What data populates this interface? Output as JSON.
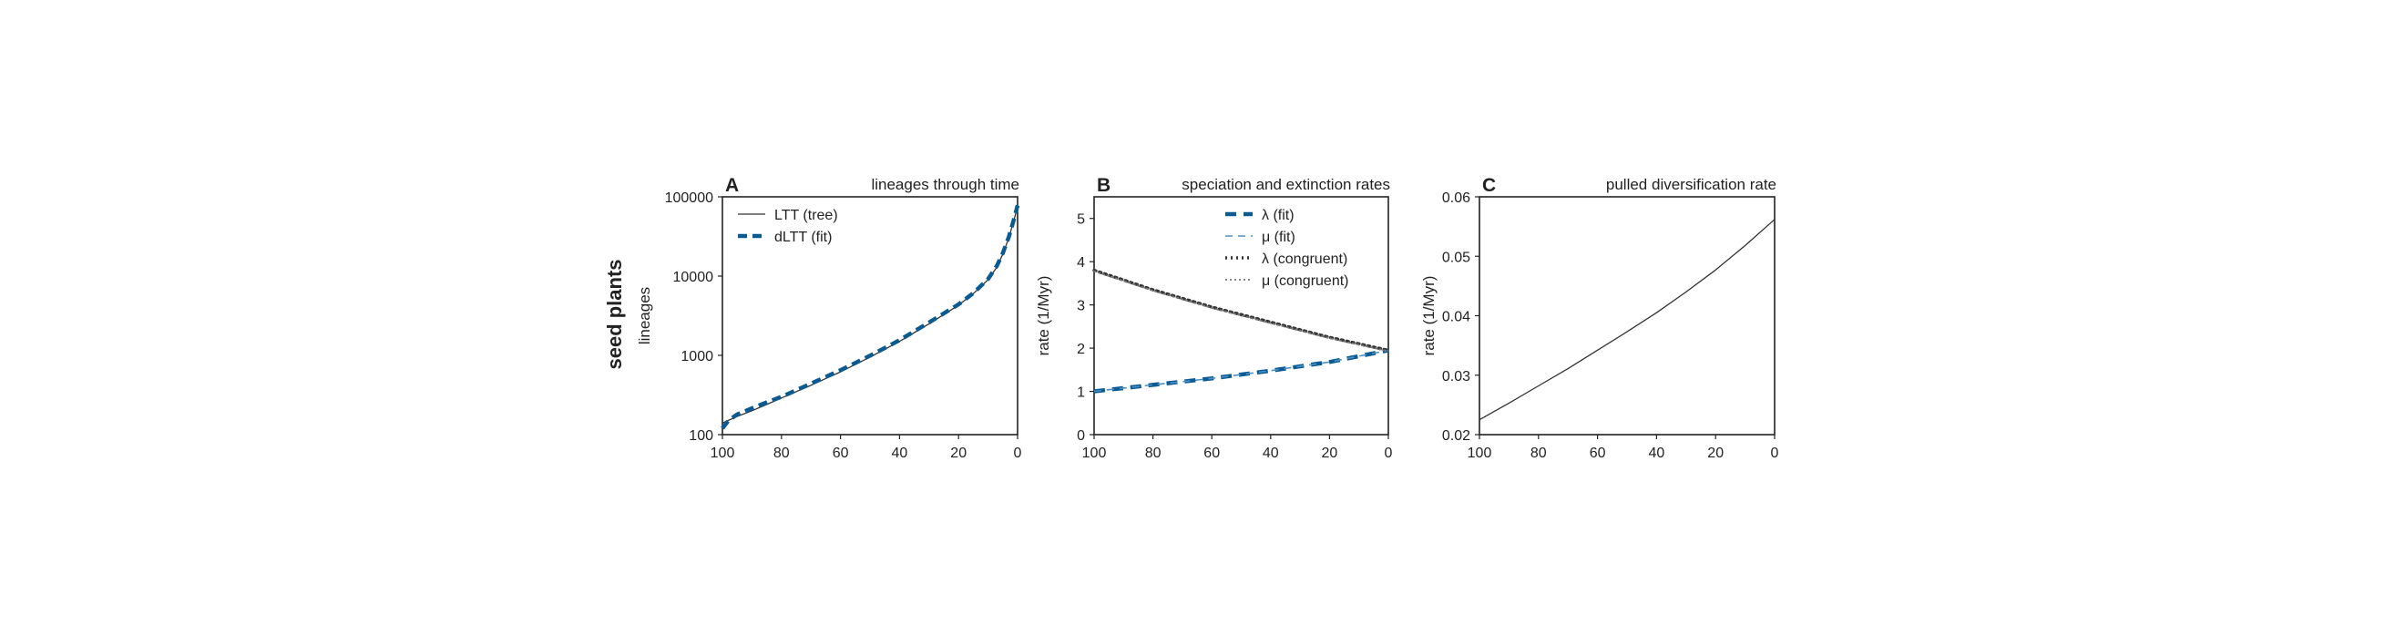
{
  "figure": {
    "row_label": "seed plants",
    "colors": {
      "black": "#333333",
      "blue": "#0b5a91",
      "lightblue": "#4a90c8",
      "axis": "#222222"
    }
  },
  "chart_data": [
    {
      "id": "A",
      "panel_letter": "A",
      "type": "line",
      "title": "lineages through time",
      "xlabel": "",
      "ylabel": "lineages",
      "xlim": [
        100,
        0
      ],
      "ylim": [
        100,
        100000
      ],
      "yscale": "log",
      "xticks": [
        100,
        80,
        60,
        40,
        20,
        0
      ],
      "yticks": [
        100,
        1000,
        10000,
        100000
      ],
      "ytick_labels": [
        "100",
        "1000",
        "10000",
        "100000"
      ],
      "legend": "top-left",
      "series": [
        {
          "name": "LTT (tree)",
          "style": "solid",
          "color": "#333333",
          "x": [
            100,
            95,
            90,
            85,
            80,
            70,
            60,
            50,
            40,
            30,
            20,
            15,
            10,
            7,
            5,
            3,
            1,
            0
          ],
          "y": [
            140,
            170,
            200,
            240,
            290,
            420,
            620,
            950,
            1500,
            2500,
            4300,
            6000,
            9000,
            13000,
            19000,
            30000,
            55000,
            75000
          ]
        },
        {
          "name": "dLTT (fit)",
          "style": "dashed",
          "color": "#0b5a91",
          "x": [
            100,
            98,
            95,
            90,
            85,
            80,
            70,
            60,
            50,
            40,
            30,
            20,
            15,
            10,
            7,
            5,
            3,
            1,
            0
          ],
          "y": [
            120,
            150,
            180,
            215,
            255,
            300,
            440,
            650,
            990,
            1550,
            2600,
            4400,
            6100,
            9200,
            13500,
            19500,
            31000,
            56000,
            78000
          ]
        }
      ]
    },
    {
      "id": "B",
      "panel_letter": "B",
      "type": "line",
      "title": "speciation and extinction rates",
      "xlabel": "",
      "ylabel": "rate (1/Myr)",
      "xlim": [
        100,
        0
      ],
      "ylim": [
        0,
        5.5
      ],
      "xticks": [
        100,
        80,
        60,
        40,
        20,
        0
      ],
      "yticks": [
        0,
        1,
        2,
        3,
        4,
        5
      ],
      "legend": "top-center",
      "series": [
        {
          "name": "λ (fit)",
          "style": "dashed-thick",
          "color": "#0b5a91",
          "x": [
            100,
            80,
            60,
            40,
            20,
            0
          ],
          "y": [
            1.0,
            1.15,
            1.3,
            1.48,
            1.68,
            1.95
          ]
        },
        {
          "name": "μ (fit)",
          "style": "dashed-thin",
          "color": "#4a90c8",
          "x": [
            100,
            80,
            60,
            40,
            20,
            0
          ],
          "y": [
            1.0,
            1.15,
            1.3,
            1.48,
            1.68,
            1.95
          ]
        },
        {
          "name": "λ (congruent)",
          "style": "dotted-thick",
          "color": "#333333",
          "x": [
            100,
            80,
            60,
            40,
            20,
            0
          ],
          "y": [
            3.8,
            3.35,
            2.95,
            2.6,
            2.25,
            1.95
          ]
        },
        {
          "name": "μ (congruent)",
          "style": "dotted-thin",
          "color": "#777777",
          "x": [
            100,
            80,
            60,
            40,
            20,
            0
          ],
          "y": [
            3.78,
            3.33,
            2.93,
            2.58,
            2.23,
            1.93
          ]
        }
      ]
    },
    {
      "id": "C",
      "panel_letter": "C",
      "type": "line",
      "title": "pulled diversification rate",
      "xlabel": "",
      "ylabel": "rate (1/Myr)",
      "xlim": [
        100,
        0
      ],
      "ylim": [
        0.02,
        0.06
      ],
      "xticks": [
        100,
        80,
        60,
        40,
        20,
        0
      ],
      "yticks": [
        0.02,
        0.03,
        0.04,
        0.05,
        0.06
      ],
      "ytick_labels": [
        "0.02",
        "0.03",
        "0.04",
        "0.05",
        "0.06"
      ],
      "legend": "none",
      "series": [
        {
          "style": "solid",
          "color": "#333333",
          "x": [
            100,
            90,
            80,
            70,
            60,
            50,
            40,
            30,
            20,
            10,
            0
          ],
          "y": [
            0.0225,
            0.0253,
            0.0282,
            0.0311,
            0.0342,
            0.0373,
            0.0405,
            0.044,
            0.0477,
            0.0518,
            0.0562
          ]
        }
      ]
    }
  ]
}
